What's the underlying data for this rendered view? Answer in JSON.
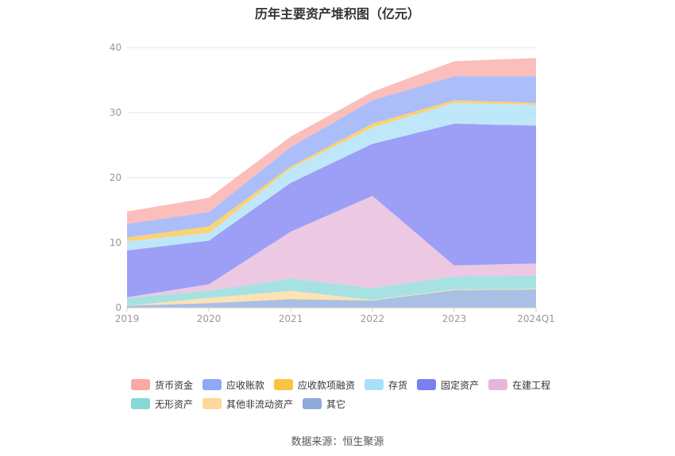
{
  "chart_data": {
    "type": "area",
    "title": "历年主要资产堆积图（亿元）",
    "x": [
      "2019",
      "2020",
      "2021",
      "2022",
      "2023",
      "2024Q1"
    ],
    "ylim": [
      0,
      40
    ],
    "yticks": [
      0,
      10,
      20,
      30,
      40
    ],
    "grid": true,
    "legend_position": "bottom",
    "stacked": true,
    "series": [
      {
        "name": "其它",
        "color": "#8eaadb",
        "values": [
          0.3,
          0.7,
          1.3,
          1.1,
          2.7,
          2.8
        ]
      },
      {
        "name": "其他非流动资产",
        "color": "#fdd89a",
        "values": [
          0.0,
          0.8,
          1.3,
          0.1,
          0.1,
          0.1
        ]
      },
      {
        "name": "无形资产",
        "color": "#88d8d8",
        "values": [
          1.2,
          1.1,
          1.9,
          1.8,
          2.0,
          2.0
        ]
      },
      {
        "name": "在建工程",
        "color": "#e6b6da",
        "values": [
          0.1,
          1.0,
          7.2,
          14.2,
          1.7,
          1.9
        ]
      },
      {
        "name": "固定资产",
        "color": "#7b7ff2",
        "values": [
          7.2,
          6.7,
          7.5,
          8.0,
          21.8,
          21.2
        ]
      },
      {
        "name": "存货",
        "color": "#a8e0f8",
        "values": [
          1.4,
          1.2,
          2.2,
          2.5,
          3.2,
          3.2
        ]
      },
      {
        "name": "应收款项融资",
        "color": "#fbc343",
        "values": [
          0.6,
          1.0,
          0.3,
          0.6,
          0.4,
          0.3
        ]
      },
      {
        "name": "应收账款",
        "color": "#8fa8f8",
        "values": [
          2.1,
          2.2,
          3.0,
          3.6,
          3.7,
          4.1
        ]
      },
      {
        "name": "货币资金",
        "color": "#f9a8a4",
        "values": [
          1.9,
          2.2,
          1.6,
          1.3,
          2.3,
          2.8
        ]
      }
    ]
  },
  "legend_order": [
    [
      "货币资金",
      "应收账款",
      "应收款项融资",
      "存货",
      "固定资产",
      "在建工程"
    ],
    [
      "无形资产",
      "其他非流动资产",
      "其它"
    ]
  ],
  "source": "数据来源：恒生聚源"
}
